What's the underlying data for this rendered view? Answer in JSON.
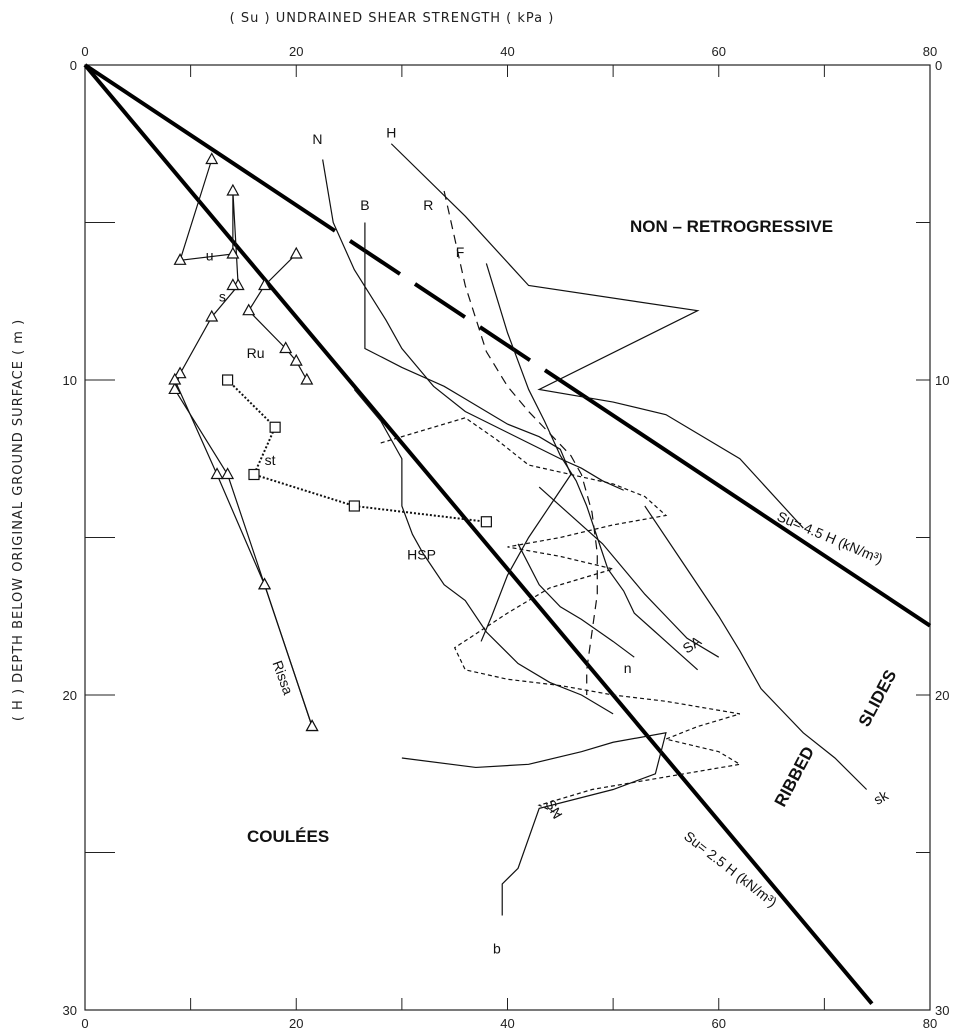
{
  "chart_data": {
    "type": "line",
    "title": "",
    "xlabel": "( Su )  UNDRAINED   SHEAR   STRENGTH    ( kPa )",
    "ylabel": "( H )   DEPTH  BELOW  ORIGINAL   GROUND   SURFACE    ( m )",
    "xlim": [
      0,
      80
    ],
    "ylim": [
      30,
      0
    ],
    "x_ticks_labeled": [
      "0",
      "20",
      "40",
      "60",
      "80"
    ],
    "y_ticks_labeled": [
      "0",
      "10",
      "20",
      "30"
    ],
    "zones": [
      "NON – RETROGRESSIVE",
      "SLIDES",
      "RIBBED",
      "COULÉES"
    ],
    "reference_lines": [
      {
        "name": "Su= 4.5 H (kN/m³)",
        "points": [
          [
            0,
            0
          ],
          [
            80,
            17.8
          ]
        ]
      },
      {
        "name": "Su= 2.5 H (kN/m³)",
        "points": [
          [
            0,
            0
          ],
          [
            74.5,
            29.8
          ]
        ]
      }
    ],
    "series": [
      {
        "name": "N",
        "style": "solid",
        "points": [
          [
            22.5,
            3
          ],
          [
            23.5,
            5
          ],
          [
            25.5,
            6.5
          ],
          [
            27,
            7.3
          ],
          [
            28.5,
            8.1
          ],
          [
            30,
            9
          ],
          [
            33,
            10.2
          ],
          [
            36,
            11
          ],
          [
            39,
            11.5
          ],
          [
            42,
            12
          ],
          [
            45,
            12.5
          ],
          [
            47,
            12.8
          ],
          [
            49,
            13.2
          ],
          [
            51,
            13.5
          ]
        ]
      },
      {
        "name": "H",
        "style": "solid",
        "points": [
          [
            29,
            2.5
          ],
          [
            36,
            4.8
          ],
          [
            42,
            7
          ],
          [
            58,
            7.8
          ],
          [
            43,
            10.3
          ],
          [
            50,
            10.7
          ],
          [
            55,
            11.1
          ],
          [
            57,
            11.5
          ],
          [
            62,
            12.5
          ],
          [
            68,
            14.7
          ]
        ]
      },
      {
        "name": "B",
        "style": "solid",
        "points": [
          [
            26.5,
            5
          ],
          [
            26.5,
            9
          ],
          [
            30,
            9.6
          ],
          [
            34,
            10.2
          ],
          [
            36,
            10.6
          ],
          [
            38,
            11
          ],
          [
            40,
            11.4
          ],
          [
            43,
            11.8
          ],
          [
            45,
            12.2
          ],
          [
            46,
            13
          ],
          [
            44,
            14
          ],
          [
            42,
            15
          ],
          [
            40,
            16.2
          ],
          [
            38.5,
            17.5
          ],
          [
            37.5,
            18.3
          ]
        ]
      },
      {
        "name": "R",
        "style": "dashed",
        "points": [
          [
            34,
            4
          ],
          [
            36,
            7
          ],
          [
            38,
            9.1
          ],
          [
            40,
            10.2
          ],
          [
            42,
            11
          ],
          [
            44,
            11.7
          ],
          [
            46,
            12.4
          ],
          [
            47,
            13
          ],
          [
            48,
            14.2
          ],
          [
            48.5,
            15.5
          ],
          [
            48.5,
            16.8
          ],
          [
            48,
            18
          ],
          [
            47.5,
            19.2
          ],
          [
            47.5,
            20
          ]
        ]
      },
      {
        "name": "F",
        "style": "solid",
        "points": [
          [
            38,
            6.3
          ],
          [
            40,
            8.5
          ],
          [
            42,
            10.3
          ],
          [
            43.5,
            11.3
          ],
          [
            45,
            12.4
          ],
          [
            46.5,
            13.2
          ],
          [
            47.5,
            14
          ],
          [
            48.5,
            15
          ],
          [
            49.5,
            16
          ],
          [
            51,
            16.7
          ],
          [
            52,
            17.4
          ],
          [
            54,
            18
          ],
          [
            56,
            18.6
          ],
          [
            58,
            19.2
          ]
        ]
      },
      {
        "name": "HSP",
        "style": "solid",
        "points": [
          [
            25.5,
            10.3
          ],
          [
            28,
            11.3
          ],
          [
            30,
            12.5
          ],
          [
            30,
            14
          ],
          [
            31,
            14.9
          ],
          [
            32,
            15.5
          ],
          [
            34,
            16.5
          ],
          [
            36,
            17
          ],
          [
            38,
            18
          ],
          [
            41,
            19
          ],
          [
            44,
            19.6
          ],
          [
            47,
            20
          ],
          [
            50,
            20.6
          ]
        ]
      },
      {
        "name": "SN",
        "style": "dotted",
        "points": [
          [
            28,
            12
          ],
          [
            33,
            11.5
          ],
          [
            36,
            11.2
          ],
          [
            39,
            11.9
          ],
          [
            42,
            12.7
          ],
          [
            46,
            13
          ],
          [
            50,
            13.3
          ],
          [
            53,
            13.7
          ],
          [
            55,
            14.3
          ],
          [
            50,
            14.6
          ],
          [
            45,
            15
          ],
          [
            40,
            15.3
          ],
          [
            45,
            15.6
          ],
          [
            50,
            16
          ],
          [
            44,
            16.6
          ],
          [
            40,
            17.4
          ],
          [
            35,
            18.5
          ],
          [
            36,
            19.2
          ],
          [
            40,
            19.5
          ],
          [
            45,
            19.7
          ],
          [
            50,
            20
          ],
          [
            55,
            20.2
          ],
          [
            62,
            20.6
          ],
          [
            58,
            21
          ],
          [
            55,
            21.4
          ],
          [
            60,
            21.8
          ],
          [
            62,
            22.2
          ],
          [
            55,
            22.6
          ],
          [
            48,
            23
          ],
          [
            43,
            23.5
          ],
          [
            45,
            23.8
          ]
        ]
      },
      {
        "name": "b",
        "style": "solid",
        "points": [
          [
            30,
            22
          ],
          [
            37,
            22.3
          ],
          [
            42,
            22.2
          ],
          [
            47,
            21.8
          ],
          [
            50,
            21.5
          ],
          [
            55,
            21.2
          ],
          [
            54,
            22.5
          ],
          [
            50,
            23
          ],
          [
            43,
            23.6
          ],
          [
            41,
            25.5
          ],
          [
            39.5,
            26
          ],
          [
            39.5,
            27
          ]
        ]
      },
      {
        "name": "n",
        "style": "solid",
        "points": [
          [
            41,
            15.2
          ],
          [
            43,
            16.5
          ],
          [
            45,
            17.2
          ],
          [
            47,
            17.6
          ],
          [
            50,
            18.3
          ],
          [
            52,
            18.8
          ]
        ]
      },
      {
        "name": "sk",
        "style": "solid",
        "points": [
          [
            53,
            14
          ],
          [
            56,
            15.5
          ],
          [
            58,
            16.5
          ],
          [
            60,
            17.5
          ],
          [
            62,
            18.6
          ],
          [
            64,
            19.8
          ],
          [
            66,
            20.5
          ],
          [
            68,
            21.2
          ],
          [
            71,
            22
          ],
          [
            74,
            23
          ]
        ]
      },
      {
        "name": "SA",
        "style": "solid",
        "points": [
          [
            43,
            13.4
          ],
          [
            46,
            14.3
          ],
          [
            49,
            15.2
          ],
          [
            51,
            16
          ],
          [
            53,
            16.8
          ],
          [
            55,
            17.5
          ],
          [
            57,
            18.2
          ],
          [
            60,
            18.8
          ]
        ]
      },
      {
        "name": "u",
        "style": "triangle-marker",
        "points": [
          [
            12,
            3
          ],
          [
            9,
            6.2
          ],
          [
            14,
            6
          ],
          [
            14,
            4
          ],
          [
            14.5,
            7
          ],
          [
            12,
            8
          ],
          [
            9,
            9.8
          ],
          [
            8.5,
            10.3
          ],
          [
            13.5,
            13
          ],
          [
            17,
            16.5
          ],
          [
            21.5,
            21
          ]
        ]
      },
      {
        "name": "s",
        "style": "triangle-marker",
        "points": [
          [
            14,
            7
          ]
        ]
      },
      {
        "name": "Ru",
        "style": "triangle-marker",
        "points": [
          [
            20,
            6
          ],
          [
            17,
            7
          ],
          [
            15.5,
            7.8
          ],
          [
            19,
            9
          ],
          [
            20,
            9.4
          ],
          [
            21,
            10
          ]
        ]
      },
      {
        "name": "Rissa",
        "style": "triangle-marker",
        "points": [
          [
            8.5,
            10
          ],
          [
            12.5,
            13
          ],
          [
            17,
            16.5
          ],
          [
            21.5,
            21
          ]
        ]
      },
      {
        "name": "st",
        "style": "square-dotted",
        "points": [
          [
            13.5,
            10
          ],
          [
            18,
            11.5
          ],
          [
            16,
            13
          ],
          [
            25.5,
            14
          ],
          [
            38,
            14.5
          ]
        ]
      }
    ]
  },
  "labels": {
    "zone_nonretro": "NON – RETROGRESSIVE",
    "zone_slides": "SLIDES",
    "zone_ribbed": "RIBBED",
    "zone_coulees": "COULÉES",
    "eq_upper": "Su= 4.5 H (kN/m³)",
    "eq_lower": "Su= 2.5 H (kN/m³)",
    "x_title": "( Su )  UNDRAINED   SHEAR   STRENGTH    ( kPa )",
    "y_title": "( H )   DEPTH  BELOW  ORIGINAL   GROUND   SURFACE    ( m )"
  }
}
